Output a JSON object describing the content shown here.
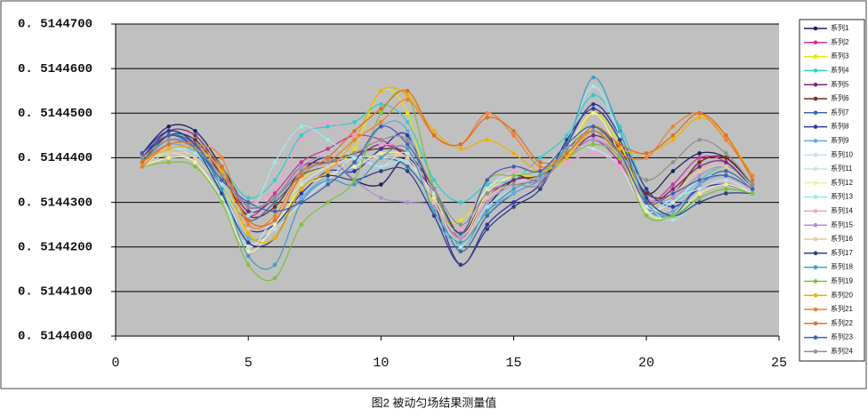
{
  "chart_data": {
    "type": "line",
    "title": "图2 被动匀场结果测量值",
    "x": [
      1,
      2,
      3,
      4,
      5,
      6,
      7,
      8,
      9,
      10,
      11,
      12,
      13,
      14,
      15,
      16,
      17,
      18,
      19,
      20,
      21,
      22,
      23,
      24
    ],
    "xlim": [
      0,
      25
    ],
    "xticks": [
      0,
      5,
      10,
      15,
      20,
      25
    ],
    "ylim": [
      0.5144,
      0.51447
    ],
    "yticks": [
      {
        "value": 0.5144,
        "label": "0. 5144000"
      },
      {
        "value": 0.51441,
        "label": "0. 5144100"
      },
      {
        "value": 0.51442,
        "label": "0. 5144200"
      },
      {
        "value": 0.51443,
        "label": "0. 5144300"
      },
      {
        "value": 0.51444,
        "label": "0. 5144400"
      },
      {
        "value": 0.51445,
        "label": "0. 5144500"
      },
      {
        "value": 0.51446,
        "label": "0. 5144600"
      },
      {
        "value": 0.51447,
        "label": "0. 5144700"
      }
    ],
    "grid": true,
    "legend": "right",
    "series": [
      {
        "name": "系列1",
        "color": "#1f1f5f",
        "values": [
          0.514441,
          0.514447,
          0.514446,
          0.514438,
          0.514429,
          0.514431,
          0.514437,
          0.51444,
          0.514435,
          0.514434,
          0.51444,
          0.514431,
          0.51442,
          0.514429,
          0.514435,
          0.514436,
          0.514442,
          0.514446,
          0.514442,
          0.514432,
          0.514437,
          0.514441,
          0.51444,
          0.514434
        ]
      },
      {
        "name": "系列2",
        "color": "#cc3399",
        "values": [
          0.514439,
          0.514444,
          0.514442,
          0.514436,
          0.514427,
          0.514432,
          0.514439,
          0.514442,
          0.514445,
          0.514444,
          0.51444,
          0.51443,
          0.514422,
          0.514432,
          0.514434,
          0.514435,
          0.51444,
          0.514444,
          0.514439,
          0.51443,
          0.514434,
          0.51444,
          0.514439,
          0.514433
        ]
      },
      {
        "name": "系列3",
        "color": "#e6e600",
        "values": [
          0.514438,
          0.514442,
          0.514441,
          0.514434,
          0.514423,
          0.514422,
          0.514435,
          0.514438,
          0.514442,
          0.514455,
          0.51445,
          0.514428,
          0.514426,
          0.514433,
          0.514436,
          0.514436,
          0.51444,
          0.51445,
          0.514443,
          0.51443,
          0.514432,
          0.514437,
          0.514438,
          0.514433
        ]
      },
      {
        "name": "系列4",
        "color": "#33cccc",
        "values": [
          0.51444,
          0.514445,
          0.514444,
          0.514438,
          0.514431,
          0.514435,
          0.514445,
          0.514447,
          0.514448,
          0.514452,
          0.514448,
          0.514435,
          0.51443,
          0.514434,
          0.514435,
          0.51444,
          0.514445,
          0.514454,
          0.514447,
          0.514433,
          0.51443,
          0.514435,
          0.514438,
          0.514434
        ]
      },
      {
        "name": "系列5",
        "color": "#7a2a7a",
        "values": [
          0.51444,
          0.514446,
          0.514445,
          0.514437,
          0.514428,
          0.514431,
          0.514438,
          0.514439,
          0.51444,
          0.514443,
          0.51444,
          0.514432,
          0.514422,
          0.514431,
          0.514435,
          0.514436,
          0.51444,
          0.514445,
          0.514441,
          0.51443,
          0.514433,
          0.514438,
          0.514439,
          0.514433
        ]
      },
      {
        "name": "系列6",
        "color": "#7a2a1a",
        "values": [
          0.514439,
          0.514445,
          0.514444,
          0.514436,
          0.514427,
          0.514429,
          0.514437,
          0.514439,
          0.514441,
          0.514442,
          0.514441,
          0.514433,
          0.514423,
          0.514432,
          0.514436,
          0.514435,
          0.514441,
          0.514447,
          0.514442,
          0.514432,
          0.514432,
          0.514439,
          0.51444,
          0.514434
        ]
      },
      {
        "name": "系列7",
        "color": "#3a6aa0",
        "values": [
          0.514441,
          0.514446,
          0.514443,
          0.514434,
          0.514426,
          0.51443,
          0.514436,
          0.514438,
          0.514439,
          0.51444,
          0.514438,
          0.51443,
          0.514419,
          0.514427,
          0.514432,
          0.514435,
          0.514441,
          0.514447,
          0.514441,
          0.514429,
          0.514427,
          0.514434,
          0.514437,
          0.514433
        ]
      },
      {
        "name": "系列8",
        "color": "#3333aa",
        "values": [
          0.514441,
          0.514446,
          0.514443,
          0.514433,
          0.514424,
          0.514425,
          0.514432,
          0.514437,
          0.514437,
          0.514442,
          0.514445,
          0.51443,
          0.514416,
          0.514425,
          0.51443,
          0.514434,
          0.514443,
          0.514452,
          0.514445,
          0.514433,
          0.514429,
          0.514433,
          0.514434,
          0.514432
        ]
      },
      {
        "name": "系列9",
        "color": "#66aadd",
        "values": [
          0.514439,
          0.514443,
          0.514441,
          0.514432,
          0.514422,
          0.514424,
          0.514431,
          0.514436,
          0.514438,
          0.514447,
          0.514446,
          0.514427,
          0.514421,
          0.514428,
          0.514432,
          0.514435,
          0.51444,
          0.514444,
          0.51444,
          0.514429,
          0.514428,
          0.514434,
          0.514436,
          0.514433
        ]
      },
      {
        "name": "系列10",
        "color": "#c8e0f0",
        "values": [
          0.514438,
          0.514442,
          0.51444,
          0.514433,
          0.514421,
          0.514424,
          0.51443,
          0.514435,
          0.51444,
          0.514438,
          0.514441,
          0.51443,
          0.514423,
          0.514433,
          0.514437,
          0.514438,
          0.514442,
          0.514442,
          0.514438,
          0.514428,
          0.514431,
          0.514433,
          0.514435,
          0.514432
        ]
      },
      {
        "name": "系列11",
        "color": "#c8e8e0",
        "values": [
          0.514439,
          0.514441,
          0.514439,
          0.514431,
          0.51442,
          0.514427,
          0.514434,
          0.514438,
          0.51444,
          0.51444,
          0.514439,
          0.514432,
          0.514425,
          0.514433,
          0.514436,
          0.514437,
          0.514441,
          0.514447,
          0.51444,
          0.514429,
          0.51443,
          0.514435,
          0.514436,
          0.514433
        ]
      },
      {
        "name": "系列12",
        "color": "#f0f0a0",
        "values": [
          0.514438,
          0.51444,
          0.514439,
          0.51443,
          0.514419,
          0.514425,
          0.514433,
          0.514436,
          0.514438,
          0.514441,
          0.51444,
          0.514431,
          0.514422,
          0.514432,
          0.514436,
          0.514437,
          0.514442,
          0.51445,
          0.514441,
          0.514428,
          0.514427,
          0.514432,
          0.514434,
          0.514432
        ]
      },
      {
        "name": "系列13",
        "color": "#a0e8f0",
        "values": [
          0.514439,
          0.514442,
          0.514441,
          0.514434,
          0.514427,
          0.514439,
          0.514447,
          0.514444,
          0.51444,
          0.514438,
          0.514439,
          0.51443,
          0.51442,
          0.514429,
          0.514433,
          0.514436,
          0.514444,
          0.514456,
          0.514445,
          0.51443,
          0.514426,
          0.514431,
          0.514433,
          0.514432
        ]
      },
      {
        "name": "系列14",
        "color": "#f0a0d0",
        "values": [
          0.514439,
          0.514443,
          0.514442,
          0.514436,
          0.51443,
          0.514433,
          0.514444,
          0.514448,
          0.514445,
          0.514443,
          0.514442,
          0.51443,
          0.514424,
          0.514435,
          0.514437,
          0.514438,
          0.514439,
          0.514441,
          0.514438,
          0.51443,
          0.514432,
          0.514435,
          0.514436,
          0.514433
        ]
      },
      {
        "name": "系列15",
        "color": "#b090d0",
        "values": [
          0.51444,
          0.514444,
          0.514443,
          0.514437,
          0.514429,
          0.514431,
          0.514438,
          0.51444,
          0.514435,
          0.514431,
          0.51443,
          0.514429,
          0.514422,
          0.51443,
          0.514434,
          0.514435,
          0.51444,
          0.514444,
          0.51444,
          0.514431,
          0.514431,
          0.514436,
          0.514438,
          0.514433
        ]
      },
      {
        "name": "系列16",
        "color": "#e8c8a0",
        "values": [
          0.514438,
          0.514441,
          0.51444,
          0.514433,
          0.514424,
          0.514427,
          0.514435,
          0.514438,
          0.514439,
          0.51444,
          0.51444,
          0.51443,
          0.514421,
          0.514431,
          0.514434,
          0.514436,
          0.514441,
          0.514446,
          0.51444,
          0.51443,
          0.514432,
          0.514437,
          0.514438,
          0.514433
        ]
      },
      {
        "name": "系列17",
        "color": "#304080",
        "values": [
          0.51444,
          0.514445,
          0.514442,
          0.514432,
          0.514421,
          0.514422,
          0.514433,
          0.514436,
          0.514435,
          0.514437,
          0.514437,
          0.514427,
          0.514416,
          0.514424,
          0.514429,
          0.514433,
          0.514444,
          0.514451,
          0.514444,
          0.514431,
          0.514427,
          0.51443,
          0.514432,
          0.514432
        ]
      },
      {
        "name": "系列18",
        "color": "#40a0c0",
        "values": [
          0.514439,
          0.514444,
          0.514442,
          0.514433,
          0.514418,
          0.514416,
          0.51443,
          0.514435,
          0.514434,
          0.51444,
          0.514442,
          0.514428,
          0.514421,
          0.514428,
          0.514433,
          0.514436,
          0.514443,
          0.514458,
          0.514446,
          0.51443,
          0.514427,
          0.514431,
          0.514433,
          0.514432
        ]
      },
      {
        "name": "系列19",
        "color": "#80c040",
        "values": [
          0.514438,
          0.514439,
          0.514438,
          0.51443,
          0.514416,
          0.514413,
          0.514425,
          0.51443,
          0.514435,
          0.51445,
          0.514454,
          0.514433,
          0.514423,
          0.514435,
          0.514436,
          0.514437,
          0.51444,
          0.514443,
          0.51444,
          0.514427,
          0.514427,
          0.514431,
          0.514433,
          0.514432
        ]
      },
      {
        "name": "系列20",
        "color": "#f0b000",
        "values": [
          0.514439,
          0.514442,
          0.514442,
          0.514437,
          0.514423,
          0.514422,
          0.514433,
          0.514437,
          0.514444,
          0.514455,
          0.514454,
          0.514446,
          0.514442,
          0.514444,
          0.514441,
          0.514437,
          0.51444,
          0.514446,
          0.514442,
          0.514441,
          0.514444,
          0.514449,
          0.514445,
          0.514436
        ]
      },
      {
        "name": "系列21",
        "color": "#f08030",
        "values": [
          0.514438,
          0.514443,
          0.514443,
          0.51444,
          0.514425,
          0.514427,
          0.514437,
          0.514439,
          0.514444,
          0.514448,
          0.514453,
          0.514445,
          0.514443,
          0.51445,
          0.514445,
          0.514438,
          0.514441,
          0.514446,
          0.514441,
          0.51444,
          0.514447,
          0.51445,
          0.514444,
          0.514436
        ]
      },
      {
        "name": "系列22",
        "color": "#e07020",
        "values": [
          0.514439,
          0.514443,
          0.514443,
          0.514438,
          0.514426,
          0.514426,
          0.514436,
          0.51444,
          0.514446,
          0.514451,
          0.514455,
          0.514445,
          0.514443,
          0.514449,
          0.514446,
          0.514439,
          0.514441,
          0.514447,
          0.514443,
          0.514441,
          0.514445,
          0.51445,
          0.514445,
          0.514435
        ]
      },
      {
        "name": "系列23",
        "color": "#4060b0",
        "values": [
          0.514441,
          0.514445,
          0.514443,
          0.514435,
          0.51443,
          0.514428,
          0.51443,
          0.514434,
          0.514439,
          0.514447,
          0.514443,
          0.514433,
          0.514423,
          0.514435,
          0.514438,
          0.514437,
          0.514443,
          0.514447,
          0.514441,
          0.51443,
          0.514432,
          0.514435,
          0.514436,
          0.514433
        ]
      },
      {
        "name": "系列24",
        "color": "#909090",
        "values": [
          0.51444,
          0.514444,
          0.514442,
          0.514436,
          0.514429,
          0.514431,
          0.514437,
          0.514439,
          0.514441,
          0.514444,
          0.514444,
          0.514433,
          0.514425,
          0.514432,
          0.514434,
          0.514434,
          0.514442,
          0.514446,
          0.514441,
          0.514435,
          0.514439,
          0.514444,
          0.514441,
          0.514434
        ]
      }
    ]
  }
}
